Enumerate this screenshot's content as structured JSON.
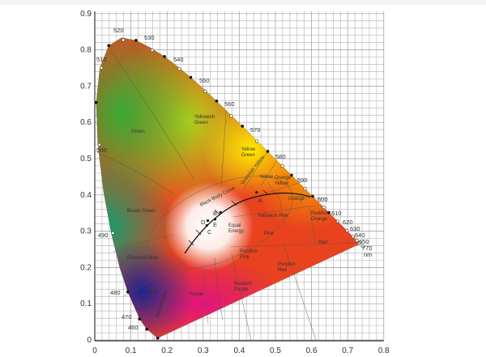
{
  "axes": {
    "x_ticks": [
      "0",
      "0.1",
      "0.2",
      "0.3",
      "0.4",
      "0.5",
      "0.6",
      "0.7",
      "0.8"
    ],
    "y_ticks": [
      "0",
      "0.1",
      "0.2",
      "0.3",
      "0.4",
      "0.5",
      "0.6",
      "0.7",
      "0.8",
      "0.9"
    ],
    "grid": true
  },
  "wavelengths": [
    "460",
    "470",
    "480",
    "490",
    "500",
    "510",
    "520",
    "530",
    "540",
    "550",
    "560",
    "570",
    "580",
    "590",
    "600",
    "610",
    "620",
    "630",
    "640",
    "650",
    "770"
  ],
  "unit": "nm",
  "regions": [
    "Green",
    "Yellowish Green",
    "Yellow Green",
    "Greenish Yellow",
    "Yellow",
    "Orange Yellow",
    "Orange",
    "Reddish Orange",
    "Yellowish Pink",
    "Pink",
    "Red",
    "Equal Energy",
    "Purplish Pink",
    "Purplish Red",
    "Reddish Purple",
    "Purple",
    "Purplish Blue",
    "Blue",
    "Greenish Blue",
    "Bluish Green"
  ],
  "black_body_label": "Black Body Curve",
  "illuminants": [
    "A",
    "B",
    "C",
    "D",
    "E"
  ],
  "colors": {
    "red": "#e8431e",
    "green": "#2ea83a",
    "yellow": "#f5e800",
    "blue": "#1e2f9a",
    "magenta": "#e0207a",
    "white": "#ffffff"
  }
}
